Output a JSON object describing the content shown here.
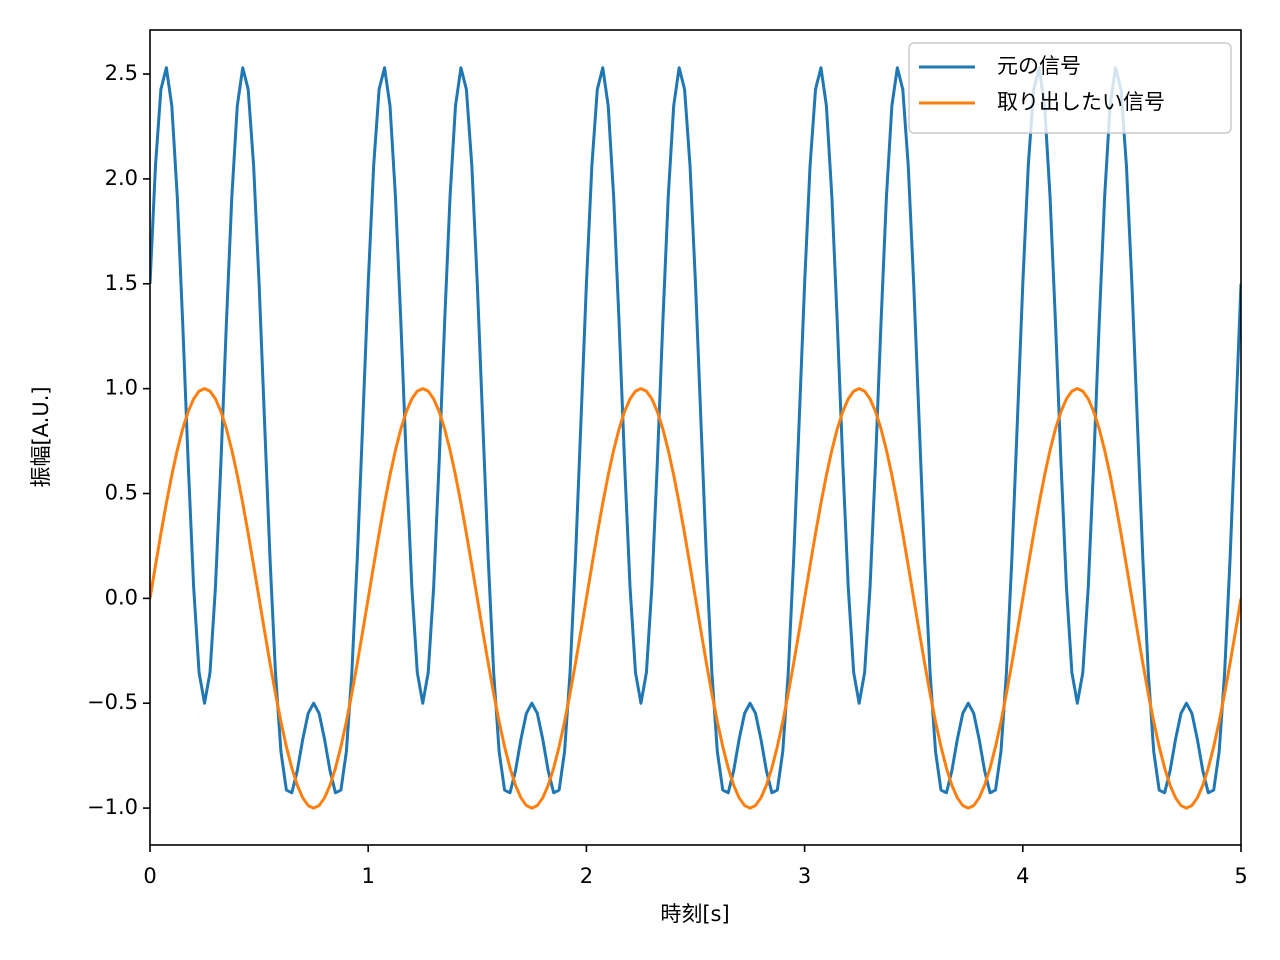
{
  "chart_data": {
    "type": "line",
    "xlabel": "時刻[s]",
    "ylabel": "振幅[A.U.]",
    "xlim": [
      0,
      5
    ],
    "xticks": [
      0,
      1,
      2,
      3,
      4,
      5
    ],
    "ylim": [
      -1.176,
      2.71
    ],
    "yticks": [
      {
        "value": -1,
        "label": "−1.0"
      },
      {
        "value": -0.5,
        "label": "−0.5"
      },
      {
        "value": 0,
        "label": "0.0"
      },
      0.5,
      {
        "value": 1,
        "label": "1.0"
      },
      1.5,
      {
        "value": 2,
        "label": "2.0"
      },
      2.5
    ],
    "legend": "upper right",
    "grid": false,
    "x": [
      0,
      0.025,
      0.05,
      0.075,
      0.1,
      0.125,
      0.15,
      0.175,
      0.2,
      0.225,
      0.25,
      0.275,
      0.3,
      0.325,
      0.35,
      0.375,
      0.4,
      0.425,
      0.45,
      0.475,
      0.5,
      0.525,
      0.55,
      0.575,
      0.6,
      0.625,
      0.65,
      0.675,
      0.7,
      0.725,
      0.75,
      0.775,
      0.8,
      0.825,
      0.85,
      0.875,
      0.9,
      0.925,
      0.95,
      0.975,
      1,
      1.025,
      1.05,
      1.075,
      1.1,
      1.125,
      1.15,
      1.175,
      1.2,
      1.225,
      1.25,
      1.275,
      1.3,
      1.325,
      1.35,
      1.375,
      1.4,
      1.425,
      1.45,
      1.475,
      1.5,
      1.525,
      1.55,
      1.575,
      1.6,
      1.625,
      1.65,
      1.675,
      1.7,
      1.725,
      1.75,
      1.775,
      1.8,
      1.825,
      1.85,
      1.875,
      1.9,
      1.925,
      1.95,
      1.975,
      2,
      2.025,
      2.05,
      2.075,
      2.1,
      2.125,
      2.15,
      2.175,
      2.2,
      2.225,
      2.25,
      2.275,
      2.3,
      2.325,
      2.35,
      2.375,
      2.4,
      2.425,
      2.45,
      2.475,
      2.5,
      2.525,
      2.55,
      2.575,
      2.6,
      2.625,
      2.65,
      2.675,
      2.7,
      2.725,
      2.75,
      2.775,
      2.8,
      2.825,
      2.85,
      2.875,
      2.9,
      2.925,
      2.95,
      2.975,
      3,
      3.025,
      3.05,
      3.075,
      3.1,
      3.125,
      3.15,
      3.175,
      3.2,
      3.225,
      3.25,
      3.275,
      3.3,
      3.325,
      3.35,
      3.375,
      3.4,
      3.425,
      3.45,
      3.475,
      3.5,
      3.525,
      3.55,
      3.575,
      3.6,
      3.625,
      3.65,
      3.675,
      3.7,
      3.725,
      3.75,
      3.775,
      3.8,
      3.825,
      3.85,
      3.875,
      3.9,
      3.925,
      3.95,
      3.975,
      4,
      4.025,
      4.05,
      4.075,
      4.1,
      4.125,
      4.15,
      4.175,
      4.2,
      4.225,
      4.25,
      4.275,
      4.3,
      4.325,
      4.35,
      4.375,
      4.4,
      4.425,
      4.45,
      4.475,
      4.5,
      4.525,
      4.55,
      4.575,
      4.6,
      4.625,
      4.65,
      4.675,
      4.7,
      4.725,
      4.75,
      4.775,
      4.8,
      4.825,
      4.85,
      4.875,
      4.9,
      4.925,
      4.95,
      4.975,
      5
    ],
    "series": [
      {
        "name": "元の信号",
        "color": "#1f77b4",
        "values": [
          1.5,
          2.062,
          2.427,
          2.53,
          2.348,
          1.914,
          1.309,
          0.647,
          0.054,
          -0.354,
          -0.5,
          -0.354,
          0.054,
          0.647,
          1.309,
          1.914,
          2.348,
          2.53,
          2.427,
          2.062,
          1.5,
          0.841,
          0.191,
          -0.354,
          -0.73,
          -0.914,
          -0.927,
          -0.822,
          -0.672,
          -0.548,
          -0.5,
          -0.548,
          -0.672,
          -0.822,
          -0.927,
          -0.914,
          -0.73,
          -0.354,
          0.191,
          0.841,
          1.5,
          2.062,
          2.427,
          2.53,
          2.348,
          1.914,
          1.309,
          0.647,
          0.054,
          -0.354,
          -0.5,
          -0.354,
          0.054,
          0.647,
          1.309,
          1.914,
          2.348,
          2.53,
          2.427,
          2.062,
          1.5,
          0.841,
          0.191,
          -0.354,
          -0.73,
          -0.914,
          -0.927,
          -0.822,
          -0.672,
          -0.548,
          -0.5,
          -0.548,
          -0.672,
          -0.822,
          -0.927,
          -0.914,
          -0.73,
          -0.354,
          0.191,
          0.841,
          1.5,
          2.062,
          2.427,
          2.53,
          2.348,
          1.914,
          1.309,
          0.647,
          0.054,
          -0.354,
          -0.5,
          -0.354,
          0.054,
          0.647,
          1.309,
          1.914,
          2.348,
          2.53,
          2.427,
          2.062,
          1.5,
          0.841,
          0.191,
          -0.354,
          -0.73,
          -0.914,
          -0.927,
          -0.822,
          -0.672,
          -0.548,
          -0.5,
          -0.548,
          -0.672,
          -0.822,
          -0.927,
          -0.914,
          -0.73,
          -0.354,
          0.191,
          0.841,
          1.5,
          2.062,
          2.427,
          2.53,
          2.348,
          1.914,
          1.309,
          0.647,
          0.054,
          -0.354,
          -0.5,
          -0.354,
          0.054,
          0.647,
          1.309,
          1.914,
          2.348,
          2.53,
          2.427,
          2.062,
          1.5,
          0.841,
          0.191,
          -0.354,
          -0.73,
          -0.914,
          -0.927,
          -0.822,
          -0.672,
          -0.548,
          -0.5,
          -0.548,
          -0.672,
          -0.822,
          -0.927,
          -0.914,
          -0.73,
          -0.354,
          0.191,
          0.841,
          1.5,
          2.062,
          2.427,
          2.53,
          2.348,
          1.914,
          1.309,
          0.647,
          0.054,
          -0.354,
          -0.5,
          -0.354,
          0.054,
          0.647,
          1.309,
          1.914,
          2.348,
          2.53,
          2.427,
          2.062,
          1.5,
          0.841,
          0.191,
          -0.354,
          -0.73,
          -0.914,
          -0.927,
          -0.822,
          -0.672,
          -0.548,
          -0.5,
          -0.548,
          -0.672,
          -0.822,
          -0.927,
          -0.914,
          -0.73,
          -0.354,
          0.191,
          0.841,
          1.5
        ]
      },
      {
        "name": "取り出したい信号",
        "color": "#ff7f0e",
        "values": [
          0,
          0.156,
          0.309,
          0.454,
          0.588,
          0.707,
          0.809,
          0.891,
          0.951,
          0.988,
          1,
          0.988,
          0.951,
          0.891,
          0.809,
          0.707,
          0.588,
          0.454,
          0.309,
          0.156,
          0,
          -0.156,
          -0.309,
          -0.454,
          -0.588,
          -0.707,
          -0.809,
          -0.891,
          -0.951,
          -0.988,
          -1,
          -0.988,
          -0.951,
          -0.891,
          -0.809,
          -0.707,
          -0.588,
          -0.454,
          -0.309,
          -0.156,
          0,
          0.156,
          0.309,
          0.454,
          0.588,
          0.707,
          0.809,
          0.891,
          0.951,
          0.988,
          1,
          0.988,
          0.951,
          0.891,
          0.809,
          0.707,
          0.588,
          0.454,
          0.309,
          0.156,
          0,
          -0.156,
          -0.309,
          -0.454,
          -0.588,
          -0.707,
          -0.809,
          -0.891,
          -0.951,
          -0.988,
          -1,
          -0.988,
          -0.951,
          -0.891,
          -0.809,
          -0.707,
          -0.588,
          -0.454,
          -0.309,
          -0.156,
          0,
          0.156,
          0.309,
          0.454,
          0.588,
          0.707,
          0.809,
          0.891,
          0.951,
          0.988,
          1,
          0.988,
          0.951,
          0.891,
          0.809,
          0.707,
          0.588,
          0.454,
          0.309,
          0.156,
          0,
          -0.156,
          -0.309,
          -0.454,
          -0.588,
          -0.707,
          -0.809,
          -0.891,
          -0.951,
          -0.988,
          -1,
          -0.988,
          -0.951,
          -0.891,
          -0.809,
          -0.707,
          -0.588,
          -0.454,
          -0.309,
          -0.156,
          0,
          0.156,
          0.309,
          0.454,
          0.588,
          0.707,
          0.809,
          0.891,
          0.951,
          0.988,
          1,
          0.988,
          0.951,
          0.891,
          0.809,
          0.707,
          0.588,
          0.454,
          0.309,
          0.156,
          0,
          -0.156,
          -0.309,
          -0.454,
          -0.588,
          -0.707,
          -0.809,
          -0.891,
          -0.951,
          -0.988,
          -1,
          -0.988,
          -0.951,
          -0.891,
          -0.809,
          -0.707,
          -0.588,
          -0.454,
          -0.309,
          -0.156,
          0,
          0.156,
          0.309,
          0.454,
          0.588,
          0.707,
          0.809,
          0.891,
          0.951,
          0.988,
          1,
          0.988,
          0.951,
          0.891,
          0.809,
          0.707,
          0.588,
          0.454,
          0.309,
          0.156,
          0,
          -0.156,
          -0.309,
          -0.454,
          -0.588,
          -0.707,
          -0.809,
          -0.891,
          -0.951,
          -0.988,
          -1,
          -0.988,
          -0.951,
          -0.891,
          -0.809,
          -0.707,
          -0.588,
          -0.454,
          -0.309,
          -0.156,
          0
        ]
      }
    ]
  }
}
